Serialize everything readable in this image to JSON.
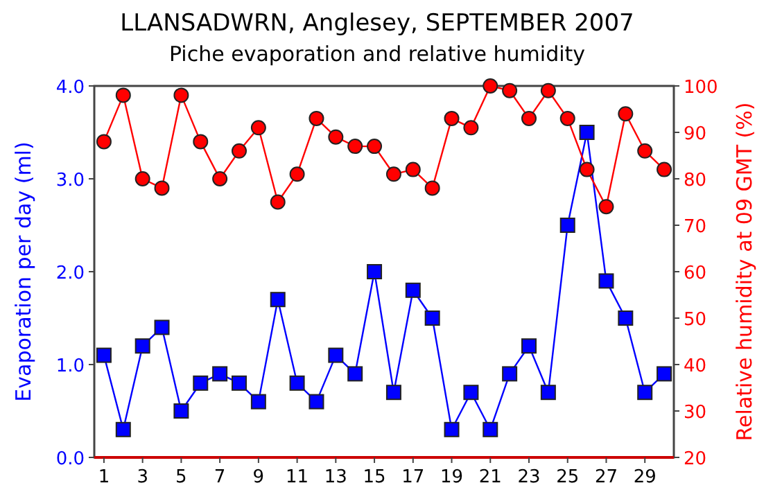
{
  "chart_data": {
    "type": "line",
    "title": "LLANSADWRN, Anglesey, SEPTEMBER 2007",
    "subtitle": "Piche evaporation and relative humidity",
    "ylabel": "Evaporation per day (ml)",
    "y2label": "Relative humidity at 09 GMT (%)",
    "x": [
      1,
      2,
      3,
      4,
      5,
      6,
      7,
      8,
      9,
      10,
      11,
      12,
      13,
      14,
      15,
      16,
      17,
      18,
      19,
      20,
      21,
      22,
      23,
      24,
      25,
      26,
      27,
      28,
      29,
      30
    ],
    "xlim": [
      0.5,
      30.5
    ],
    "xticks": [
      1,
      3,
      5,
      7,
      9,
      11,
      13,
      15,
      17,
      19,
      21,
      23,
      25,
      27,
      29
    ],
    "ylim": [
      0,
      4
    ],
    "yticks": [
      {
        "value": 0,
        "label": "0.0"
      },
      {
        "value": 1,
        "label": "1.0"
      },
      {
        "value": 2,
        "label": "2.0"
      },
      {
        "value": 3,
        "label": "3.0"
      },
      {
        "value": 4,
        "label": "4.0"
      }
    ],
    "y2lim": [
      20,
      100
    ],
    "y2ticks": [
      20,
      30,
      40,
      50,
      60,
      70,
      80,
      90,
      100
    ],
    "grid": false,
    "line_style": "solid",
    "series": [
      {
        "color": "#0000ff",
        "marker": "square",
        "values": [
          1.1,
          0.3,
          1.2,
          1.4,
          0.5,
          0.8,
          0.9,
          0.8,
          0.6,
          1.7,
          0.8,
          0.6,
          1.1,
          0.9,
          2.0,
          0.7,
          1.8,
          1.5,
          0.3,
          0.7,
          0.3,
          0.9,
          1.2,
          0.7,
          2.5,
          3.5,
          1.9,
          1.5,
          0.7,
          0.9
        ]
      },
      {
        "color": "#ff0000",
        "marker": "circle",
        "axis": "y2",
        "values": [
          88,
          98,
          80,
          78,
          98,
          88,
          80,
          86,
          91,
          75,
          81,
          93,
          89,
          87,
          87,
          81,
          82,
          78,
          93,
          91,
          100,
          99,
          93,
          99,
          93,
          82,
          74,
          94,
          86,
          82
        ]
      }
    ]
  }
}
